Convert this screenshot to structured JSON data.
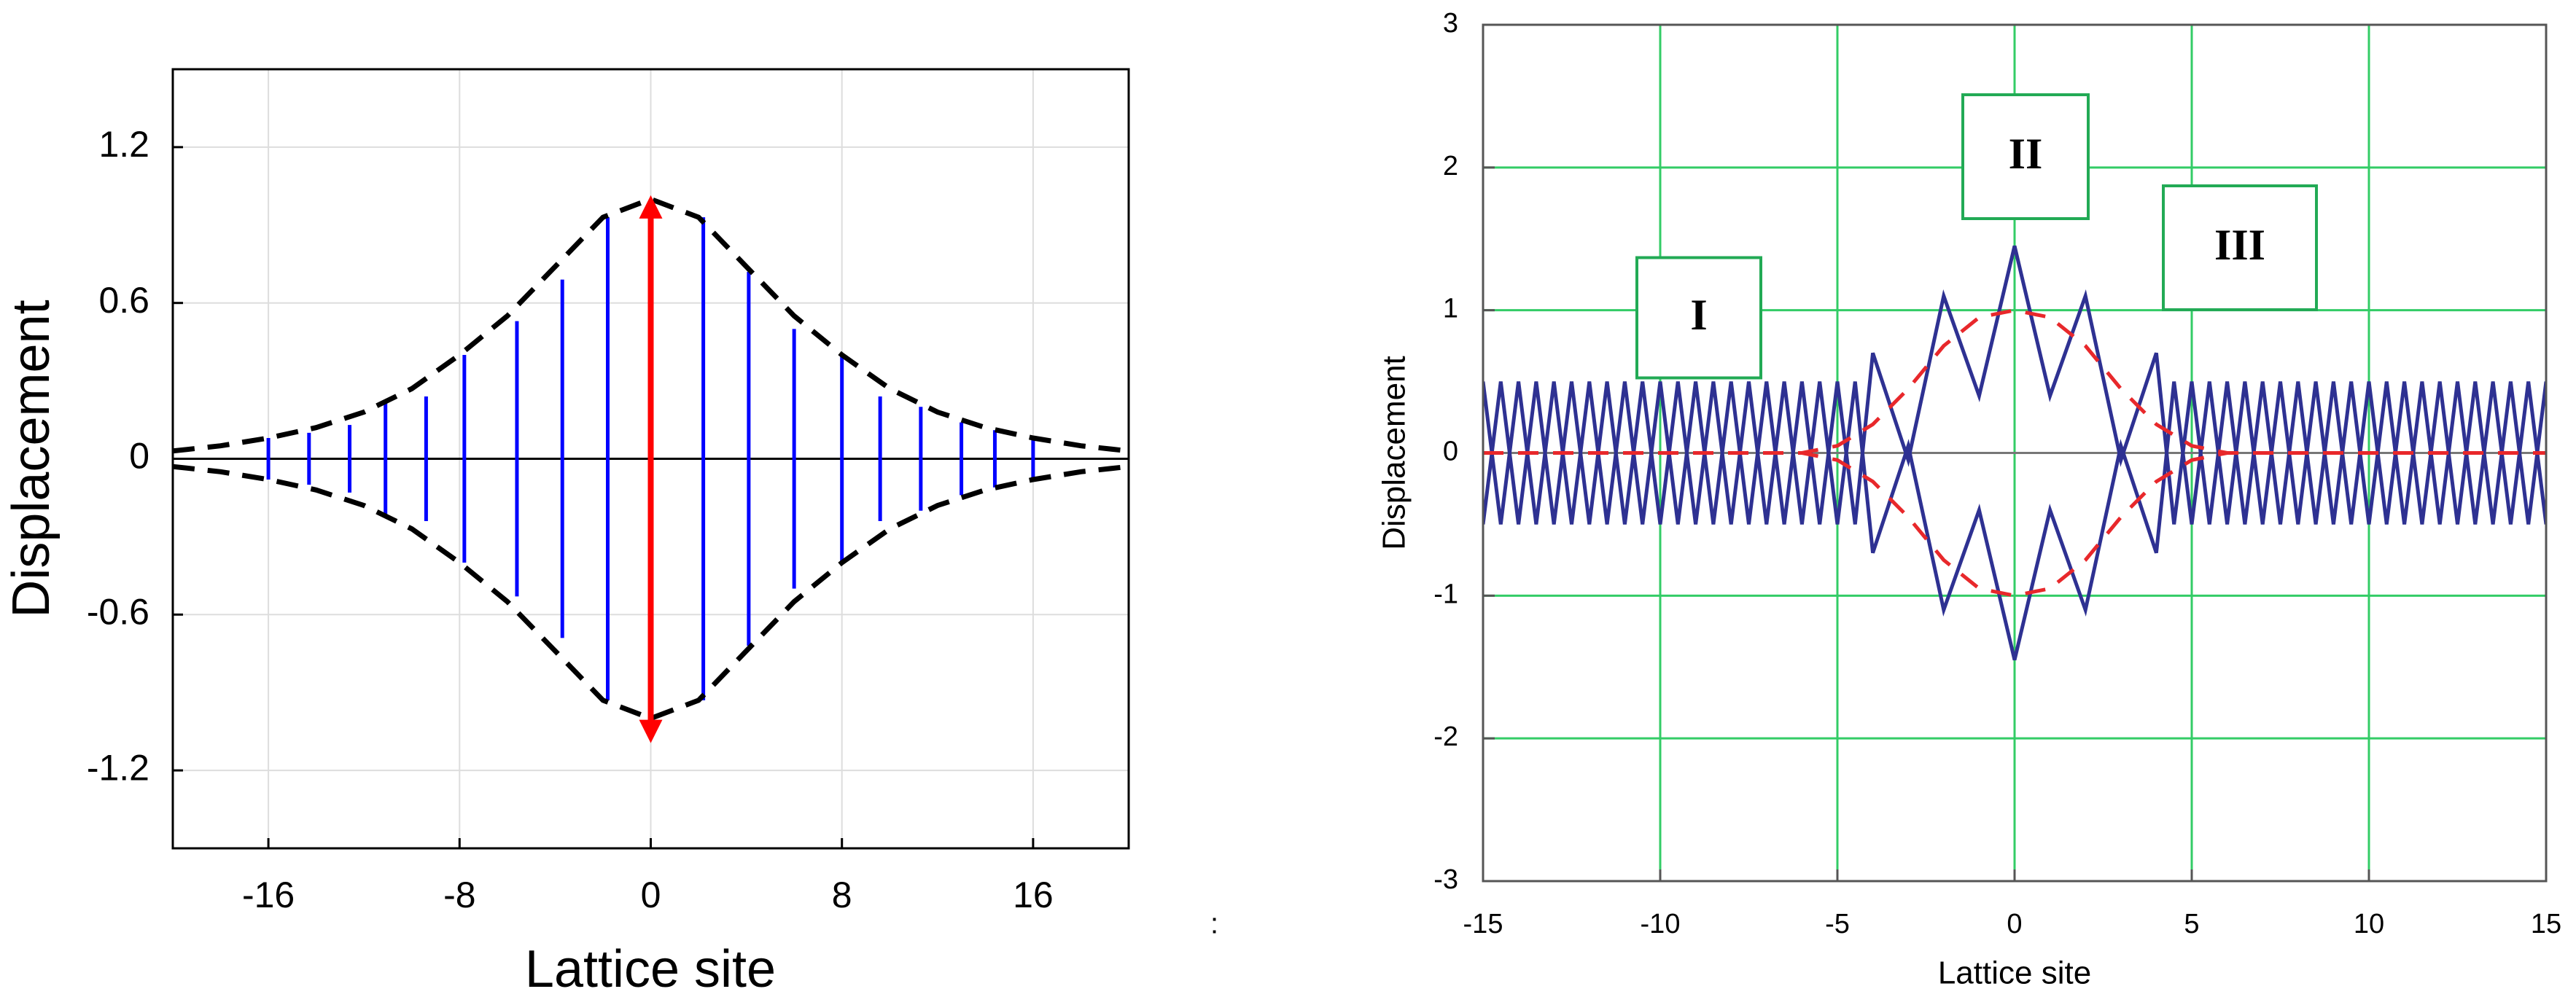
{
  "chart_data": [
    {
      "type": "line",
      "xlabel": "Lattice site",
      "ylabel": "Displacement",
      "xlim": [
        -20,
        20
      ],
      "ylim": [
        -1.5,
        1.5
      ],
      "xticks": [
        -16,
        -8,
        0,
        8,
        16
      ],
      "yticks": [
        -1.2,
        -0.6,
        0,
        0.6,
        1.2
      ],
      "grid": true,
      "grid_color": "#dddddd",
      "series": [
        {
          "color": "#000000",
          "dashed": true,
          "x": [
            -20,
            -18,
            -16,
            -14,
            -12,
            -10,
            -8,
            -6,
            -4,
            -2,
            0,
            2,
            4,
            6,
            8,
            10,
            12,
            14,
            16,
            18,
            20
          ],
          "values": [
            0.03,
            0.05,
            0.08,
            0.12,
            0.18,
            0.27,
            0.4,
            0.55,
            0.74,
            0.93,
            1.0,
            0.93,
            0.74,
            0.55,
            0.4,
            0.27,
            0.18,
            0.12,
            0.08,
            0.05,
            0.03
          ]
        },
        {
          "color": "#000000",
          "dashed": true,
          "x": [
            -20,
            -18,
            -16,
            -14,
            -12,
            -10,
            -8,
            -6,
            -4,
            -2,
            0,
            2,
            4,
            6,
            8,
            10,
            12,
            14,
            16,
            18,
            20
          ],
          "values": [
            -0.03,
            -0.05,
            -0.08,
            -0.12,
            -0.18,
            -0.27,
            -0.4,
            -0.55,
            -0.74,
            -0.93,
            -1.0,
            -0.93,
            -0.74,
            -0.55,
            -0.4,
            -0.27,
            -0.18,
            -0.12,
            -0.08,
            -0.05,
            -0.03
          ]
        }
      ],
      "ranges": {
        "color": "#0000ff",
        "x": [
          -16,
          -14.3,
          -12.6,
          -11.1,
          -9.4,
          -7.8,
          -5.6,
          -3.7,
          -1.8,
          2.2,
          4.1,
          6,
          8,
          9.6,
          11.3,
          13,
          14.4,
          16
        ],
        "high": [
          0.08,
          0.1,
          0.13,
          0.22,
          0.24,
          0.4,
          0.53,
          0.69,
          0.93,
          0.93,
          0.72,
          0.5,
          0.4,
          0.24,
          0.2,
          0.14,
          0.11,
          0.08
        ],
        "low": [
          -0.08,
          -0.1,
          -0.13,
          -0.22,
          -0.24,
          -0.4,
          -0.53,
          -0.69,
          -0.93,
          -0.93,
          -0.72,
          -0.5,
          -0.4,
          -0.24,
          -0.2,
          -0.14,
          -0.11,
          -0.08
        ]
      },
      "arrow": {
        "color": "#ff0000",
        "x": 0,
        "from": -1.05,
        "to": 0.97
      }
    },
    {
      "type": "line",
      "xlabel": "Lattice site",
      "ylabel": "Displacement",
      "xlim": [
        -15,
        15
      ],
      "ylim": [
        -3,
        3
      ],
      "xticks": [
        -15,
        -10,
        -5,
        0,
        5,
        10,
        15
      ],
      "yticks": [
        -3,
        -2,
        -1,
        0,
        1,
        2,
        3
      ],
      "grid": true,
      "grid_color": "#33cc66",
      "series": [
        {
          "color": "#2e3192",
          "dashed": false,
          "x": [
            -15,
            -14.5,
            -14,
            -13.5,
            -13,
            -12.5,
            -12,
            -11.5,
            -11,
            -10.5,
            -10,
            -9.5,
            -9,
            -8.5,
            -8,
            -7.5,
            -7,
            -6.5,
            -6,
            -5.5,
            -5,
            -4.5,
            -4,
            -3,
            -2,
            -1,
            0,
            1,
            2,
            3,
            4,
            4.5,
            5,
            5.5,
            6,
            6.5,
            7,
            7.5,
            8,
            8.5,
            9,
            9.5,
            10,
            10.5,
            11,
            11.5,
            12,
            12.5,
            13,
            13.5,
            14,
            14.5,
            15
          ],
          "values": [
            0.5,
            -0.5,
            0.5,
            -0.5,
            0.5,
            -0.5,
            0.5,
            -0.5,
            0.5,
            -0.5,
            0.5,
            -0.5,
            0.5,
            -0.5,
            0.5,
            -0.5,
            0.5,
            -0.5,
            0.5,
            -0.5,
            0.5,
            -0.5,
            0.7,
            -0.05,
            1.1,
            0.4,
            1.45,
            0.4,
            1.1,
            -0.05,
            0.7,
            -0.5,
            0.5,
            -0.5,
            0.5,
            -0.5,
            0.5,
            -0.5,
            0.5,
            -0.5,
            0.5,
            -0.5,
            0.5,
            -0.5,
            0.5,
            -0.5,
            0.5,
            -0.5,
            0.5,
            -0.5,
            0.5,
            -0.5,
            0.5
          ]
        },
        {
          "color": "#2e3192",
          "dashed": false,
          "x": [
            -15,
            -14.5,
            -14,
            -13.5,
            -13,
            -12.5,
            -12,
            -11.5,
            -11,
            -10.5,
            -10,
            -9.5,
            -9,
            -8.5,
            -8,
            -7.5,
            -7,
            -6.5,
            -6,
            -5.5,
            -5,
            -4.5,
            -4,
            -3,
            -2,
            -1,
            0,
            1,
            2,
            3,
            4,
            4.5,
            5,
            5.5,
            6,
            6.5,
            7,
            7.5,
            8,
            8.5,
            9,
            9.5,
            10,
            10.5,
            11,
            11.5,
            12,
            12.5,
            13,
            13.5,
            14,
            14.5,
            15
          ],
          "values": [
            -0.5,
            0.5,
            -0.5,
            0.5,
            -0.5,
            0.5,
            -0.5,
            0.5,
            -0.5,
            0.5,
            -0.5,
            0.5,
            -0.5,
            0.5,
            -0.5,
            0.5,
            -0.5,
            0.5,
            -0.5,
            0.5,
            -0.5,
            0.5,
            -0.7,
            0.05,
            -1.1,
            -0.4,
            -1.45,
            -0.4,
            -1.1,
            0.05,
            -0.7,
            0.5,
            -0.5,
            0.5,
            -0.5,
            0.5,
            -0.5,
            0.5,
            -0.5,
            0.5,
            -0.5,
            0.5,
            -0.5,
            0.5,
            -0.5,
            0.5,
            -0.5,
            0.5,
            -0.5,
            0.5,
            -0.5,
            0.5,
            -0.5
          ]
        },
        {
          "color": "#e8282b",
          "dashed": true,
          "x": [
            -15,
            -14,
            -13,
            -12,
            -11,
            -10,
            -9,
            -8,
            -7,
            -6,
            -5,
            -4,
            -3,
            -2,
            -1,
            0,
            1,
            2,
            3,
            4,
            5,
            6,
            7,
            8,
            9,
            10,
            11,
            12,
            13,
            14,
            15
          ],
          "values": [
            0,
            0,
            0,
            0,
            0,
            0,
            0,
            0,
            0,
            0,
            0.05,
            0.2,
            0.45,
            0.75,
            0.95,
            1.0,
            0.95,
            0.75,
            0.45,
            0.2,
            0.05,
            0,
            0,
            0,
            0,
            0,
            0,
            0,
            0,
            0,
            0
          ]
        },
        {
          "color": "#e8282b",
          "dashed": true,
          "x": [
            -15,
            -14,
            -13,
            -12,
            -11,
            -10,
            -9,
            -8,
            -7,
            -6,
            -5,
            -4,
            -3,
            -2,
            -1,
            0,
            1,
            2,
            3,
            4,
            5,
            6,
            7,
            8,
            9,
            10,
            11,
            12,
            13,
            14,
            15
          ],
          "values": [
            0,
            0,
            0,
            0,
            0,
            0,
            0,
            0,
            0,
            0,
            -0.05,
            -0.2,
            -0.45,
            -0.75,
            -0.95,
            -1.0,
            -0.95,
            -0.75,
            -0.45,
            -0.2,
            -0.05,
            0,
            0,
            0,
            0,
            0,
            0,
            0,
            0,
            0,
            0
          ]
        }
      ],
      "annotations": [
        "I",
        "II",
        "III"
      ]
    }
  ],
  "separator": ":"
}
